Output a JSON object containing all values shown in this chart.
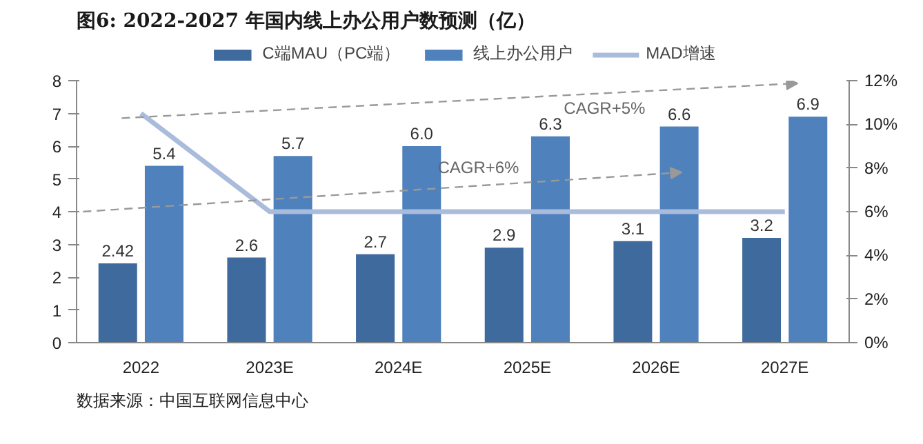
{
  "chart_data": {
    "type": "bar",
    "title": "图6:  2022-2027 年国内线上办公用户数预测（亿）",
    "categories": [
      "2022",
      "2023E",
      "2024E",
      "2025E",
      "2026E",
      "2027E"
    ],
    "series": [
      {
        "name": "C端MAU（PC端）",
        "color": "#3e6a9e",
        "values": [
          2.42,
          2.6,
          2.7,
          2.9,
          3.1,
          3.2
        ],
        "value_labels": [
          "2.42",
          "2.6",
          "2.7",
          "2.9",
          "3.1",
          "3.2"
        ]
      },
      {
        "name": "线上办公用户",
        "color": "#4f81bd",
        "values": [
          5.4,
          5.7,
          6.0,
          6.3,
          6.6,
          6.9
        ],
        "value_labels": [
          "5.4",
          "5.7",
          "6.0",
          "6.3",
          "6.6",
          "6.9"
        ]
      },
      {
        "name": "MAD增速",
        "color": "#a9bcdc",
        "type": "line",
        "axis": "y2",
        "values": [
          10.5,
          6,
          6,
          6,
          6,
          6
        ]
      }
    ],
    "ylim": [
      0,
      8
    ],
    "yticks": [
      0,
      1,
      2,
      3,
      4,
      5,
      6,
      7,
      8
    ],
    "y2lim": [
      0,
      12
    ],
    "y2ticks": [
      {
        "value": 0,
        "label": "0%"
      },
      {
        "value": 2,
        "label": "2%"
      },
      {
        "value": 4,
        "label": "4%"
      },
      {
        "value": 6,
        "label": "6%"
      },
      {
        "value": 8,
        "label": "8%"
      },
      {
        "value": 10,
        "label": "10%"
      },
      {
        "value": 12,
        "label": "12%"
      }
    ],
    "legend": "top",
    "grid": false,
    "marker": "none",
    "annotations": [
      "CAGR+5%",
      "CAGR+6%",
      "数据来源：中国互联网信息中心"
    ]
  }
}
